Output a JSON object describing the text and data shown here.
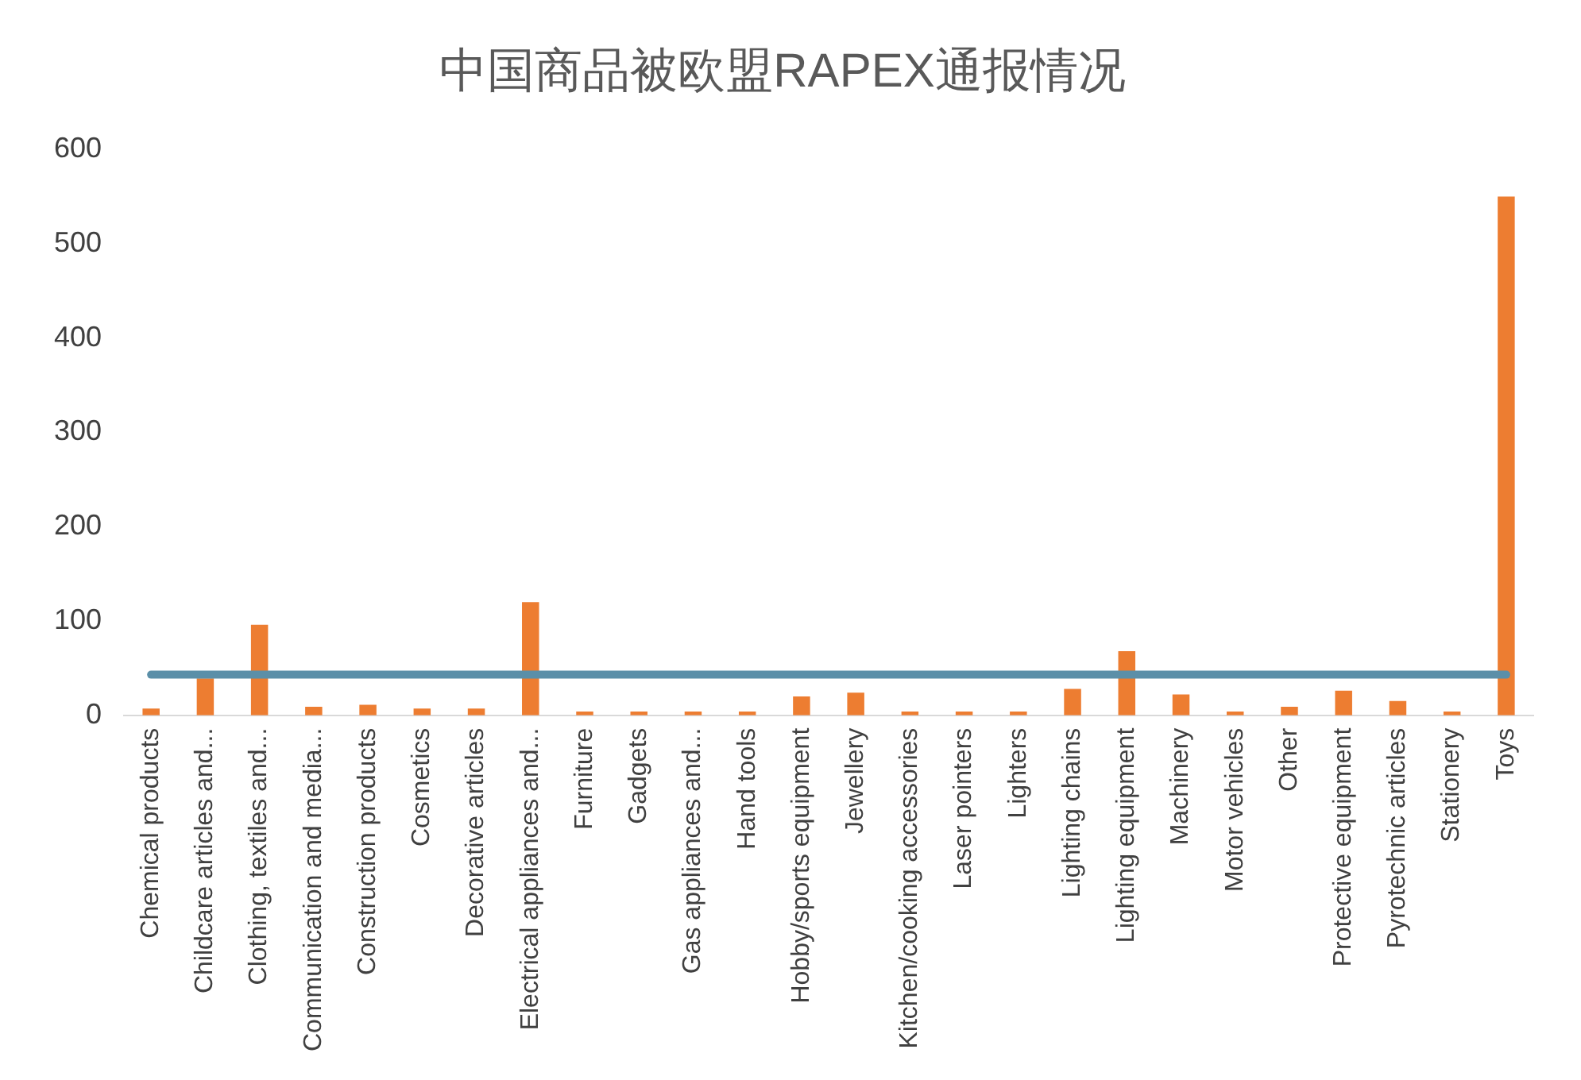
{
  "chart_data": {
    "type": "bar",
    "title": "中国商品被欧盟RAPEX通报情况",
    "categories": [
      "Chemical products",
      "Childcare articles and...",
      "Clothing, textiles and...",
      "Communication and media...",
      "Construction products",
      "Cosmetics",
      "Decorative articles",
      "Electrical appliances and...",
      "Furniture",
      "Gadgets",
      "Gas appliances and...",
      "Hand tools",
      "Hobby/sports equipment",
      "Jewellery",
      "Kitchen/cooking accessories",
      "Laser pointers",
      "Lighters",
      "Lighting chains",
      "Lighting equipment",
      "Machinery",
      "Motor vehicles",
      "Other",
      "Protective equipment",
      "Pyrotechnic articles",
      "Stationery",
      "Toys"
    ],
    "series": [
      {
        "color": "#ed7d31",
        "values": [
          7,
          39,
          96,
          9,
          11,
          7,
          7,
          120,
          4,
          4,
          4,
          4,
          20,
          24,
          4,
          4,
          4,
          28,
          68,
          22,
          4,
          9,
          26,
          15,
          4,
          550
        ]
      },
      {
        "type": "line",
        "color": "#5b8fa8",
        "values": [
          43,
          43,
          43,
          43,
          43,
          43,
          43,
          43,
          43,
          43,
          43,
          43,
          43,
          43,
          43,
          43,
          43,
          43,
          43,
          43,
          43,
          43,
          43,
          43,
          43,
          43
        ]
      }
    ],
    "ylim": [
      0,
      600
    ],
    "yticks": [
      0,
      100,
      200,
      300,
      400,
      500,
      600
    ],
    "grid": false,
    "legend": false,
    "marker": "none",
    "line_style": "solid"
  }
}
